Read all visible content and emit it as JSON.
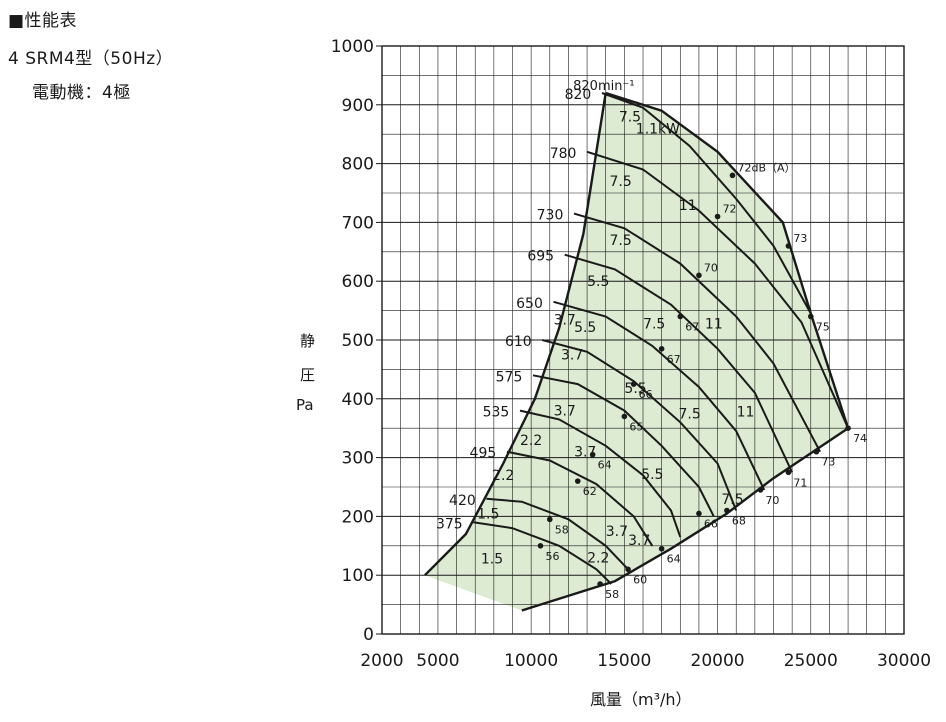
{
  "header": {
    "title": "■性能表",
    "model": "4  SRM4型（50Hz）",
    "motor": "電動機：4極"
  },
  "axis": {
    "ylabel_1": "静",
    "ylabel_2": "圧",
    "ylabel_3": "Pa",
    "xlabel": "風量（m³/h）"
  },
  "colors": {
    "fill": "#dcebd2",
    "line": "#1a1a1a",
    "grid": "#1a1a1a"
  },
  "chart_data": {
    "type": "line",
    "xlim": [
      2000,
      30000
    ],
    "ylim": [
      0,
      1000
    ],
    "x_ticks": [
      "2000",
      "5000",
      "10000",
      "15000",
      "20000",
      "25000",
      "30000"
    ],
    "x_tick_values": [
      2000,
      5000,
      10000,
      15000,
      20000,
      25000,
      30000
    ],
    "y_ticks": [
      "0",
      "100",
      "200",
      "300",
      "400",
      "500",
      "600",
      "700",
      "800",
      "900",
      "1000"
    ],
    "y_tick_values": [
      0,
      100,
      200,
      300,
      400,
      500,
      600,
      700,
      800,
      900,
      1000
    ],
    "grid": true,
    "speed_unit_label": "820min⁻¹",
    "speed_curves": [
      {
        "rpm": "820",
        "points": [
          [
            13800,
            920
          ],
          [
            16000,
            895
          ],
          [
            18500,
            830
          ],
          [
            21000,
            740
          ],
          [
            23000,
            660
          ],
          [
            25000,
            545
          ]
        ]
      },
      {
        "rpm": "780",
        "points": [
          [
            13000,
            820
          ],
          [
            16000,
            790
          ],
          [
            19000,
            720
          ],
          [
            22000,
            630
          ],
          [
            24500,
            530
          ],
          [
            27000,
            350
          ]
        ]
      },
      {
        "rpm": "730",
        "points": [
          [
            12300,
            715
          ],
          [
            15000,
            690
          ],
          [
            18000,
            630
          ],
          [
            21000,
            540
          ],
          [
            23000,
            460
          ],
          [
            25500,
            310
          ]
        ]
      },
      {
        "rpm": "695",
        "points": [
          [
            11800,
            645
          ],
          [
            14500,
            620
          ],
          [
            17500,
            560
          ],
          [
            20000,
            485
          ],
          [
            22000,
            410
          ],
          [
            24000,
            275
          ]
        ]
      },
      {
        "rpm": "650",
        "points": [
          [
            11200,
            565
          ],
          [
            14000,
            540
          ],
          [
            16500,
            490
          ],
          [
            19000,
            420
          ],
          [
            21000,
            345
          ],
          [
            22500,
            245
          ]
        ]
      },
      {
        "rpm": "610",
        "points": [
          [
            10600,
            500
          ],
          [
            13000,
            480
          ],
          [
            15500,
            430
          ],
          [
            18000,
            360
          ],
          [
            20000,
            290
          ],
          [
            21000,
            210
          ]
        ]
      },
      {
        "rpm": "575",
        "points": [
          [
            10100,
            440
          ],
          [
            12500,
            425
          ],
          [
            15000,
            380
          ],
          [
            17000,
            320
          ],
          [
            19000,
            250
          ],
          [
            19800,
            200
          ]
        ]
      },
      {
        "rpm": "535",
        "points": [
          [
            9400,
            380
          ],
          [
            11500,
            365
          ],
          [
            14000,
            320
          ],
          [
            16000,
            270
          ],
          [
            17500,
            210
          ],
          [
            18000,
            165
          ]
        ]
      },
      {
        "rpm": "495",
        "points": [
          [
            8700,
            310
          ],
          [
            11000,
            295
          ],
          [
            13500,
            255
          ],
          [
            15500,
            200
          ],
          [
            16500,
            150
          ]
        ]
      },
      {
        "rpm": "420",
        "points": [
          [
            7600,
            230
          ],
          [
            9500,
            225
          ],
          [
            12000,
            195
          ],
          [
            14000,
            150
          ],
          [
            15200,
            110
          ]
        ]
      },
      {
        "rpm": "375",
        "points": [
          [
            6900,
            190
          ],
          [
            9000,
            180
          ],
          [
            11500,
            150
          ],
          [
            13500,
            110
          ],
          [
            14300,
            85
          ]
        ]
      }
    ],
    "envelope": {
      "top_left": [
        [
          4300,
          100
        ],
        [
          6500,
          170
        ],
        [
          8500,
          290
        ],
        [
          10200,
          400
        ],
        [
          11500,
          520
        ],
        [
          12800,
          680
        ],
        [
          14000,
          920
        ]
      ],
      "right": [
        [
          14000,
          920
        ],
        [
          17000,
          890
        ],
        [
          20000,
          820
        ],
        [
          23500,
          700
        ],
        [
          25000,
          545
        ],
        [
          27000,
          350
        ]
      ],
      "bottom": [
        [
          27000,
          350
        ],
        [
          23000,
          265
        ],
        [
          20500,
          205
        ],
        [
          17500,
          145
        ],
        [
          14500,
          90
        ],
        [
          9500,
          40
        ],
        [
          4300,
          100
        ]
      ]
    },
    "power_labels": [
      "7.5",
      "1.1kW",
      "7.5",
      "11",
      "7.5",
      "5.5",
      "3.7",
      "5.5",
      "7.5",
      "11",
      "3.7",
      "5.5",
      "3.7",
      "7.5",
      "11",
      "2.2",
      "3.7",
      "5.5",
      "2.2",
      "3.7",
      "7.5",
      "1.5",
      "3.7",
      "1.5",
      "2.2"
    ],
    "noise_labels": [
      "72dB（A）",
      "72",
      "73",
      "70",
      "75",
      "67",
      "67",
      "66",
      "65",
      "64",
      "62",
      "58",
      "56",
      "58",
      "60",
      "64",
      "66",
      "68",
      "70",
      "71",
      "73",
      "74"
    ]
  }
}
